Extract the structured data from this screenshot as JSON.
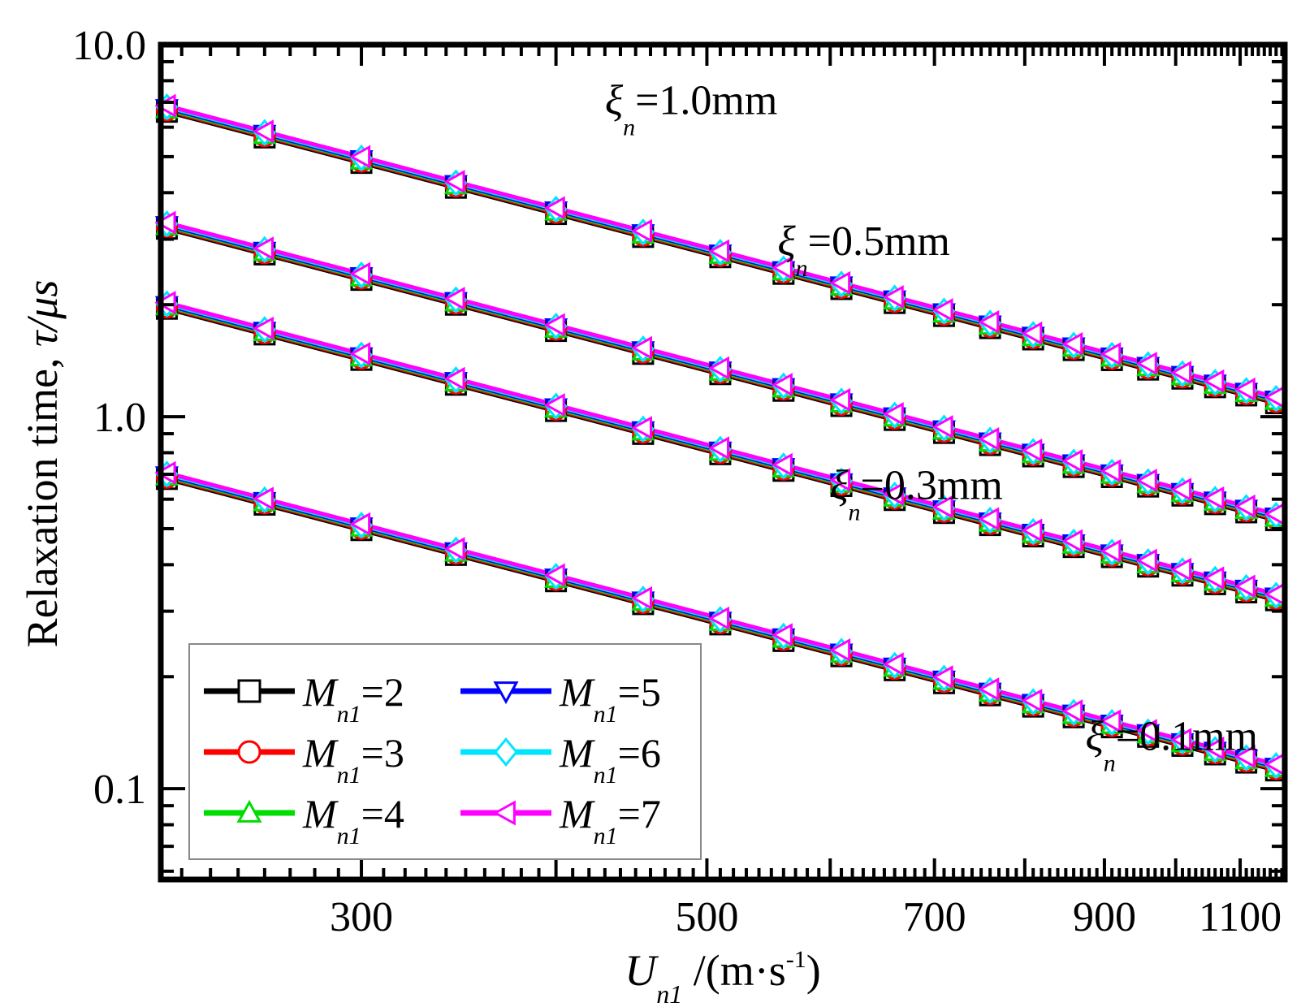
{
  "chart_data": {
    "type": "line",
    "title": "",
    "xlabel": {
      "main": "U",
      "sub": "n1",
      "unit": " /(m·s",
      "sup": "-1",
      "close": ")"
    },
    "ylabel": {
      "main": "Relaxation time, ",
      "tau": "τ",
      "unit": "/μs"
    },
    "x_scale": "log",
    "y_scale": "log",
    "xlim": [
      223,
      1175
    ],
    "ylim": [
      0.057,
      10.0
    ],
    "x_ticks": [
      300,
      500,
      700,
      900,
      1100
    ],
    "x_tick_labels": [
      "300",
      "500",
      "700",
      "900",
      "1100"
    ],
    "y_ticks": [
      0.1,
      1.0,
      10.0
    ],
    "y_tick_labels": [
      "0.1",
      "1.0",
      "10.0"
    ],
    "x": [
      225,
      260,
      300,
      345,
      400,
      455,
      510,
      560,
      610,
      660,
      710,
      760,
      810,
      860,
      910,
      960,
      1010,
      1060,
      1110,
      1160
    ],
    "curves": [
      {
        "label": "ξn=1.0mm",
        "xi_mm": 1.0,
        "tau_at_x0": 6.6,
        "slope": -1.1
      },
      {
        "label": "ξn=0.5mm",
        "xi_mm": 0.5,
        "tau_at_x0": 3.2,
        "slope": -1.1
      },
      {
        "label": "ξn=0.3mm",
        "xi_mm": 0.3,
        "tau_at_x0": 1.95,
        "slope": -1.1
      },
      {
        "label": "ξn=0.1mm",
        "xi_mm": 0.1,
        "tau_at_x0": 0.68,
        "slope": -1.1
      }
    ],
    "series": [
      {
        "name": "Mn1=2",
        "M": "2",
        "color": "#000000",
        "marker": "square"
      },
      {
        "name": "Mn1=3",
        "M": "3",
        "color": "#ff0000",
        "marker": "circle"
      },
      {
        "name": "Mn1=4",
        "M": "4",
        "color": "#00dd00",
        "marker": "triangle-up"
      },
      {
        "name": "Mn1=5",
        "M": "5",
        "color": "#0000ff",
        "marker": "triangle-down"
      },
      {
        "name": "Mn1=6",
        "M": "6",
        "color": "#00e5ff",
        "marker": "diamond"
      },
      {
        "name": "Mn1=7",
        "M": "7",
        "color": "#ff00ff",
        "marker": "triangle-left"
      }
    ],
    "annotations": [
      {
        "sym": "ξ",
        "sub": "n",
        "text": "=1.0mm",
        "x": 430,
        "y": 6.5
      },
      {
        "sym": "ξ",
        "sub": "n",
        "text": "=0.5mm",
        "x": 555,
        "y": 2.72
      },
      {
        "sym": "ξ",
        "sub": "n",
        "text": "=0.3mm",
        "x": 600,
        "y": 0.6
      },
      {
        "sym": "ξ",
        "sub": "n",
        "text": "=0.1mm",
        "x": 875,
        "y": 0.127
      }
    ],
    "legend": {
      "position": "bottom-left",
      "columns": 2,
      "symbol": "M",
      "sub": "n1",
      "eq": "="
    }
  }
}
